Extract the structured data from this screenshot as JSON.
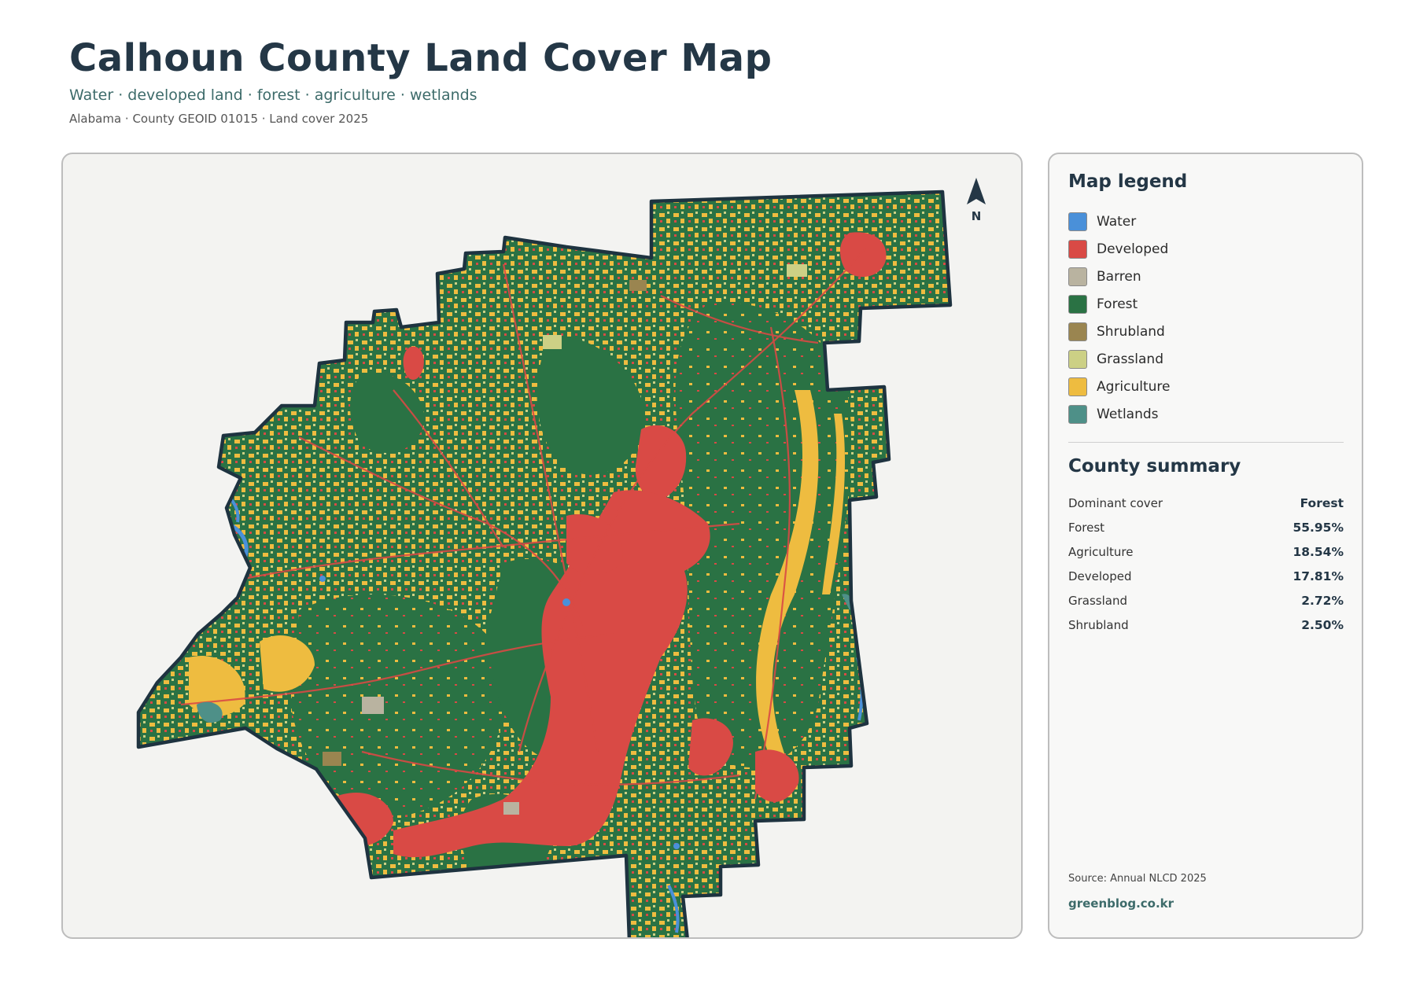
{
  "header": {
    "title": "Calhoun County Land Cover Map",
    "subtitle": "Water · developed land · forest · agriculture · wetlands",
    "meta": "Alabama · County GEOID 01015 · Land cover 2025"
  },
  "map": {
    "north_label": "N",
    "icons": [
      "north-arrow-icon"
    ]
  },
  "legend": {
    "title": "Map legend",
    "items": [
      {
        "label": "Water",
        "color": "#4a90d9"
      },
      {
        "label": "Developed",
        "color": "#d94a45"
      },
      {
        "label": "Barren",
        "color": "#b9b3a0"
      },
      {
        "label": "Forest",
        "color": "#2a7244"
      },
      {
        "label": "Shrubland",
        "color": "#9a8550"
      },
      {
        "label": "Grassland",
        "color": "#ccd085"
      },
      {
        "label": "Agriculture",
        "color": "#eebc40"
      },
      {
        "label": "Wetlands",
        "color": "#4e9088"
      }
    ]
  },
  "summary": {
    "title": "County summary",
    "rows": [
      {
        "key": "Dominant cover",
        "value": "Forest"
      },
      {
        "key": "Forest",
        "value": "55.95%"
      },
      {
        "key": "Agriculture",
        "value": "18.54%"
      },
      {
        "key": "Developed",
        "value": "17.81%"
      },
      {
        "key": "Grassland",
        "value": "2.72%"
      },
      {
        "key": "Shrubland",
        "value": "2.50%"
      }
    ]
  },
  "footer": {
    "source": "Source: Annual NLCD 2025",
    "site": "greenblog.co.kr"
  }
}
